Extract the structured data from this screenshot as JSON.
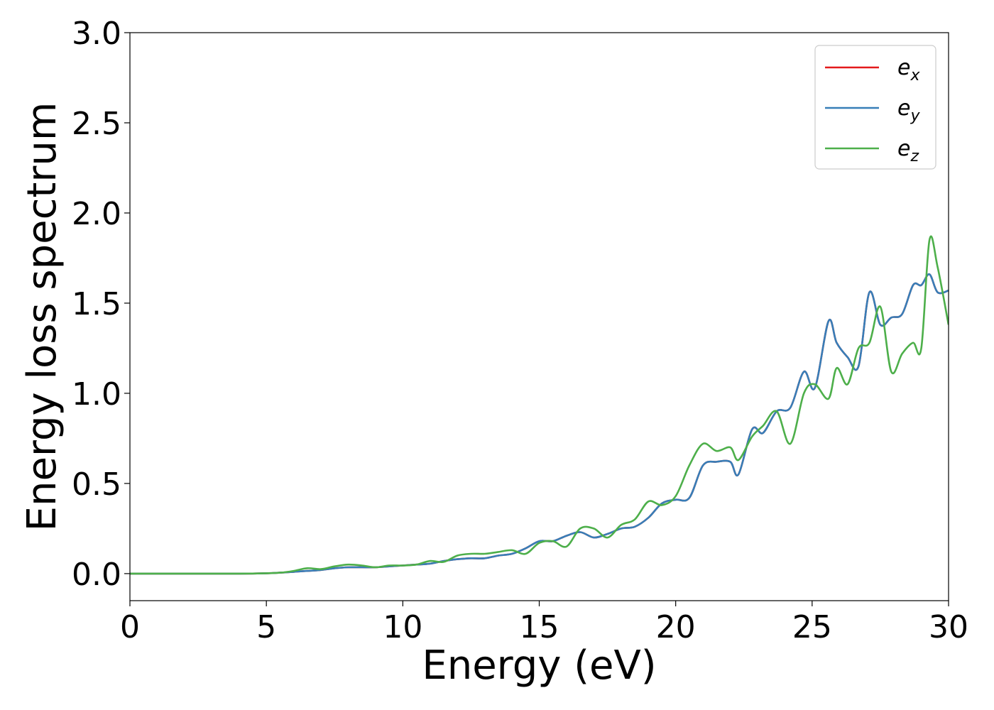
{
  "chart_data": {
    "type": "line",
    "title": "",
    "xlabel": "Energy (eV)",
    "ylabel": "Energy loss spectrum",
    "xlim": [
      0,
      30
    ],
    "ylim": [
      -0.15,
      3.0
    ],
    "xticks": [
      0,
      5,
      10,
      15,
      20,
      25,
      30
    ],
    "yticks": [
      "0.0",
      "0.5",
      "1.0",
      "1.5",
      "2.0",
      "2.5",
      "3.0"
    ],
    "xtick_labels": [
      "0",
      "5",
      "10",
      "15",
      "20",
      "25",
      "30"
    ],
    "grid": false,
    "legend_position": "top-right",
    "series": [
      {
        "name": "e_x",
        "label_base": "e",
        "label_sub": "x",
        "color": "#e41a1c",
        "x": [
          0,
          2,
          4,
          5,
          5.5,
          6,
          6.5,
          7,
          7.5,
          8,
          8.5,
          9,
          9.5,
          10,
          10.5,
          11,
          11.5,
          12,
          12.5,
          13,
          13.5,
          14,
          14.5,
          15,
          15.5,
          16,
          16.5,
          17,
          17.5,
          18,
          18.5,
          19,
          19.5,
          20,
          20.5,
          21,
          21.5,
          22,
          22.3,
          22.8,
          23.2,
          23.7,
          24.2,
          24.7,
          25.1,
          25.6,
          25.9,
          26.3,
          26.7,
          27.1,
          27.5,
          27.9,
          28.3,
          28.7,
          29.0,
          29.3,
          29.6,
          30
        ],
        "y": [
          0,
          0,
          0,
          0.002,
          0.005,
          0.01,
          0.015,
          0.02,
          0.03,
          0.035,
          0.035,
          0.035,
          0.04,
          0.045,
          0.05,
          0.055,
          0.07,
          0.08,
          0.085,
          0.085,
          0.1,
          0.11,
          0.14,
          0.18,
          0.18,
          0.21,
          0.23,
          0.2,
          0.22,
          0.25,
          0.26,
          0.31,
          0.39,
          0.41,
          0.42,
          0.6,
          0.62,
          0.62,
          0.55,
          0.8,
          0.78,
          0.9,
          0.92,
          1.12,
          1.03,
          1.4,
          1.28,
          1.2,
          1.15,
          1.56,
          1.38,
          1.42,
          1.44,
          1.6,
          1.6,
          1.66,
          1.56,
          1.57
        ]
      },
      {
        "name": "e_y",
        "label_base": "e",
        "label_sub": "y",
        "color": "#377eb8",
        "x": [
          0,
          2,
          4,
          5,
          5.5,
          6,
          6.5,
          7,
          7.5,
          8,
          8.5,
          9,
          9.5,
          10,
          10.5,
          11,
          11.5,
          12,
          12.5,
          13,
          13.5,
          14,
          14.5,
          15,
          15.5,
          16,
          16.5,
          17,
          17.5,
          18,
          18.5,
          19,
          19.5,
          20,
          20.5,
          21,
          21.5,
          22,
          22.3,
          22.8,
          23.2,
          23.7,
          24.2,
          24.7,
          25.1,
          25.6,
          25.9,
          26.3,
          26.7,
          27.1,
          27.5,
          27.9,
          28.3,
          28.7,
          29.0,
          29.3,
          29.6,
          30
        ],
        "y": [
          0,
          0,
          0,
          0.002,
          0.005,
          0.01,
          0.015,
          0.02,
          0.03,
          0.035,
          0.035,
          0.035,
          0.04,
          0.045,
          0.05,
          0.055,
          0.07,
          0.08,
          0.085,
          0.085,
          0.1,
          0.11,
          0.14,
          0.18,
          0.18,
          0.21,
          0.23,
          0.2,
          0.22,
          0.25,
          0.26,
          0.31,
          0.39,
          0.41,
          0.42,
          0.6,
          0.62,
          0.62,
          0.55,
          0.8,
          0.78,
          0.9,
          0.92,
          1.12,
          1.03,
          1.4,
          1.28,
          1.2,
          1.15,
          1.56,
          1.38,
          1.42,
          1.44,
          1.6,
          1.6,
          1.66,
          1.56,
          1.57
        ]
      },
      {
        "name": "e_z",
        "label_base": "e",
        "label_sub": "z",
        "color": "#4daf4a",
        "x": [
          0,
          2,
          4,
          5,
          5.5,
          6,
          6.5,
          7,
          7.5,
          8,
          8.5,
          9,
          9.5,
          10,
          10.5,
          11,
          11.5,
          12,
          12.5,
          13,
          13.5,
          14,
          14.5,
          15,
          15.5,
          16,
          16.5,
          17,
          17.5,
          18,
          18.5,
          19,
          19.5,
          20,
          20.5,
          21,
          21.5,
          22,
          22.3,
          22.8,
          23.2,
          23.7,
          24.2,
          24.7,
          25.1,
          25.6,
          25.9,
          26.3,
          26.7,
          27.1,
          27.5,
          27.9,
          28.3,
          28.7,
          29.0,
          29.3,
          29.6,
          30
        ],
        "y": [
          0,
          0,
          0,
          0.002,
          0.005,
          0.015,
          0.03,
          0.025,
          0.04,
          0.05,
          0.045,
          0.035,
          0.045,
          0.045,
          0.05,
          0.07,
          0.065,
          0.1,
          0.11,
          0.11,
          0.12,
          0.13,
          0.11,
          0.17,
          0.18,
          0.15,
          0.25,
          0.25,
          0.2,
          0.27,
          0.3,
          0.4,
          0.38,
          0.43,
          0.6,
          0.72,
          0.68,
          0.7,
          0.63,
          0.76,
          0.82,
          0.9,
          0.72,
          1.0,
          1.05,
          0.97,
          1.14,
          1.05,
          1.25,
          1.28,
          1.48,
          1.12,
          1.22,
          1.28,
          1.25,
          1.85,
          1.7,
          1.38
        ]
      }
    ]
  }
}
